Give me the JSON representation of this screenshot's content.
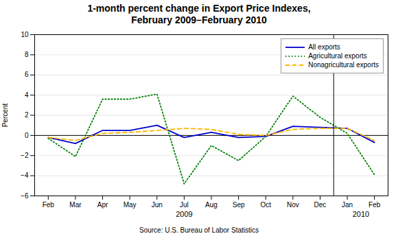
{
  "chart_data": {
    "type": "line",
    "title": "1-month percent change in Export Price Indexes,\nFebruary 2009–February 2010",
    "ylabel": "Percent",
    "caption": "Source: U.S. Bureau of Labor Statistics",
    "categories": [
      "Feb",
      "Mar",
      "Apr",
      "May",
      "Jun",
      "Jul",
      "Aug",
      "Sep",
      "Oct",
      "Nov",
      "Dec",
      "Jan",
      "Feb"
    ],
    "series": [
      {
        "name": "All exports",
        "color": "#0000CC",
        "line_style": "solid",
        "values": [
          -0.2,
          -0.8,
          0.5,
          0.5,
          1.0,
          -0.2,
          0.3,
          -0.2,
          -0.1,
          0.9,
          0.8,
          0.7,
          -0.7
        ]
      },
      {
        "name": "Agricultural exports",
        "color": "#008000",
        "line_style": "dotted",
        "values": [
          -0.3,
          -2.1,
          3.6,
          3.6,
          4.1,
          -4.8,
          -1.0,
          -2.5,
          -0.1,
          3.9,
          1.8,
          0.2,
          -3.9
        ]
      },
      {
        "name": "Nonagricultural exports",
        "color": "#FFB300",
        "line_style": "dashed",
        "values": [
          -0.2,
          -0.5,
          0.2,
          0.3,
          0.5,
          0.7,
          0.6,
          0.1,
          0.0,
          0.6,
          0.7,
          0.7,
          -0.5
        ]
      }
    ],
    "ylim": [
      -6,
      10
    ],
    "yticks": [
      -6,
      -4,
      -2,
      0,
      2,
      4,
      6,
      8,
      10
    ],
    "grid": true,
    "legend": "upper right",
    "annotations": [
      {
        "text": "2009",
        "x": 5
      },
      {
        "text": "2010",
        "x": 11.5
      },
      {
        "type": "rule",
        "x": 10.5
      }
    ]
  }
}
